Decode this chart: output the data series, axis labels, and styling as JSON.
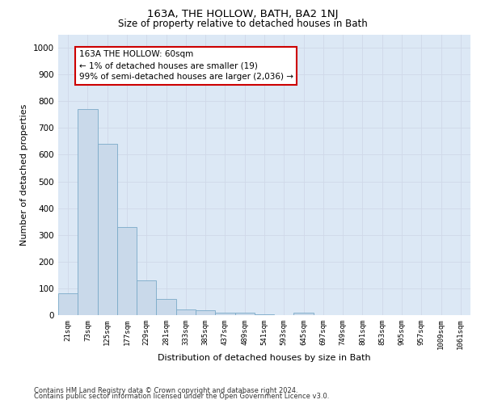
{
  "title": "163A, THE HOLLOW, BATH, BA2 1NJ",
  "subtitle": "Size of property relative to detached houses in Bath",
  "xlabel": "Distribution of detached houses by size in Bath",
  "ylabel": "Number of detached properties",
  "categories": [
    "21sqm",
    "73sqm",
    "125sqm",
    "177sqm",
    "229sqm",
    "281sqm",
    "333sqm",
    "385sqm",
    "437sqm",
    "489sqm",
    "541sqm",
    "593sqm",
    "645sqm",
    "697sqm",
    "749sqm",
    "801sqm",
    "853sqm",
    "905sqm",
    "957sqm",
    "1009sqm",
    "1061sqm"
  ],
  "values": [
    83,
    770,
    640,
    328,
    130,
    60,
    22,
    17,
    10,
    9,
    2,
    0,
    10,
    0,
    0,
    0,
    0,
    0,
    0,
    0,
    0
  ],
  "bar_color": "#c9d9ea",
  "bar_edge_color": "#7aaac8",
  "grid_color": "#d0d8e8",
  "bg_color": "#dce8f5",
  "fig_bg_color": "#ffffff",
  "annotation_text": "163A THE HOLLOW: 60sqm\n← 1% of detached houses are smaller (19)\n99% of semi-detached houses are larger (2,036) →",
  "annotation_box_facecolor": "#ffffff",
  "annotation_box_edgecolor": "#cc0000",
  "ylim": [
    0,
    1050
  ],
  "yticks": [
    0,
    100,
    200,
    300,
    400,
    500,
    600,
    700,
    800,
    900,
    1000
  ],
  "title_fontsize": 9.5,
  "subtitle_fontsize": 8.5,
  "tick_fontsize": 6.5,
  "ylabel_fontsize": 8,
  "xlabel_fontsize": 8,
  "annotation_fontsize": 7.5,
  "footer1": "Contains HM Land Registry data © Crown copyright and database right 2024.",
  "footer2": "Contains public sector information licensed under the Open Government Licence v3.0.",
  "footer_fontsize": 6
}
